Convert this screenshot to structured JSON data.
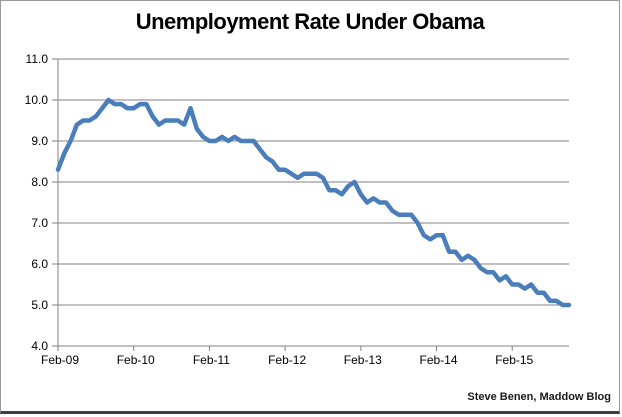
{
  "title": "Unemployment Rate Under Obama",
  "attribution": "Steve Benen, Maddow Blog",
  "chart_data": {
    "type": "line",
    "title": "Unemployment Rate Under Obama",
    "xlabel": "",
    "ylabel": "",
    "ylim": [
      4.0,
      11.0
    ],
    "grid": "horizontal",
    "legend": "none",
    "line_color": "#4A7EBB",
    "axis_color": "#808080",
    "label_color": "#000000",
    "y_tick_labels": [
      "11.0",
      "10.0",
      "9.0",
      "8.0",
      "7.0",
      "6.0",
      "5.0",
      "4.0"
    ],
    "y_tick_values": [
      11.0,
      10.0,
      9.0,
      8.0,
      7.0,
      6.0,
      5.0,
      4.0
    ],
    "x_tick_labels": [
      "Feb-09",
      "Feb-10",
      "Feb-11",
      "Feb-12",
      "Feb-13",
      "Feb-14",
      "Feb-15"
    ],
    "x_tick_month_positions": [
      0,
      12,
      24,
      36,
      48,
      60,
      72
    ],
    "x_interval": "monthly",
    "values": [
      8.3,
      8.7,
      9.0,
      9.4,
      9.5,
      9.5,
      9.6,
      9.8,
      10.0,
      9.9,
      9.9,
      9.8,
      9.8,
      9.9,
      9.9,
      9.6,
      9.4,
      9.5,
      9.5,
      9.5,
      9.4,
      9.8,
      9.3,
      9.1,
      9.0,
      9.0,
      9.1,
      9.0,
      9.1,
      9.0,
      9.0,
      9.0,
      8.8,
      8.6,
      8.5,
      8.3,
      8.3,
      8.2,
      8.1,
      8.2,
      8.2,
      8.2,
      8.1,
      7.8,
      7.8,
      7.7,
      7.9,
      8.0,
      7.7,
      7.5,
      7.6,
      7.5,
      7.5,
      7.3,
      7.2,
      7.2,
      7.2,
      7.0,
      6.7,
      6.6,
      6.7,
      6.7,
      6.3,
      6.3,
      6.1,
      6.2,
      6.1,
      5.9,
      5.8,
      5.8,
      5.6,
      5.7,
      5.5,
      5.5,
      5.4,
      5.5,
      5.3,
      5.3,
      5.1,
      5.1,
      5.0,
      5.0
    ]
  }
}
